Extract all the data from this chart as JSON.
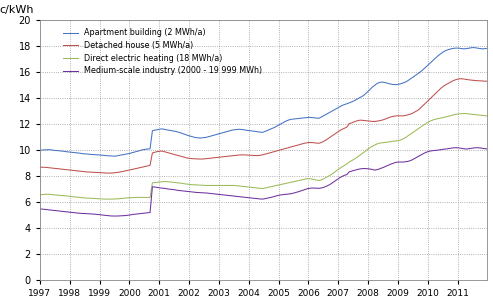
{
  "title": "c/kWh",
  "ylim": [
    0,
    20
  ],
  "yticks": [
    0,
    2,
    4,
    6,
    8,
    10,
    12,
    14,
    16,
    18,
    20
  ],
  "xlim": [
    1997,
    2012
  ],
  "xtick_labels": [
    "1997",
    "1998",
    "1999",
    "2000",
    "2001",
    "2002",
    "2003",
    "2004",
    "2005",
    "2006",
    "2007",
    "2008",
    "2009",
    "2010",
    "2011"
  ],
  "series": [
    {
      "label": "Apartment building (2 MWh/a)",
      "color": "#4472C4",
      "data": [
        10.02,
        10.02,
        10.04,
        10.04,
        10.05,
        10.03,
        10.0,
        9.98,
        9.97,
        9.95,
        9.93,
        9.9,
        9.88,
        9.86,
        9.84,
        9.82,
        9.8,
        9.78,
        9.75,
        9.73,
        9.72,
        9.7,
        9.68,
        9.67,
        9.66,
        9.65,
        9.63,
        9.62,
        9.6,
        9.58,
        9.57,
        9.56,
        9.55,
        9.58,
        9.62,
        9.65,
        9.68,
        9.72,
        9.75,
        9.8,
        9.85,
        9.9,
        9.95,
        10.0,
        10.05,
        10.08,
        10.1,
        10.12,
        11.5,
        11.55,
        11.58,
        11.62,
        11.65,
        11.62,
        11.58,
        11.55,
        11.52,
        11.48,
        11.45,
        11.4,
        11.35,
        11.28,
        11.22,
        11.15,
        11.1,
        11.05,
        11.0,
        10.97,
        10.95,
        10.95,
        10.98,
        11.0,
        11.05,
        11.1,
        11.15,
        11.2,
        11.25,
        11.3,
        11.35,
        11.4,
        11.45,
        11.5,
        11.55,
        11.58,
        11.6,
        11.62,
        11.6,
        11.58,
        11.55,
        11.52,
        11.5,
        11.48,
        11.45,
        11.42,
        11.4,
        11.38,
        11.45,
        11.52,
        11.6,
        11.68,
        11.75,
        11.85,
        11.95,
        12.05,
        12.15,
        12.25,
        12.32,
        12.38,
        12.4,
        12.42,
        12.44,
        12.46,
        12.48,
        12.5,
        12.52,
        12.54,
        12.52,
        12.5,
        12.48,
        12.46,
        12.55,
        12.65,
        12.75,
        12.85,
        12.95,
        13.05,
        13.15,
        13.25,
        13.35,
        13.45,
        13.52,
        13.58,
        13.65,
        13.72,
        13.8,
        13.9,
        14.0,
        14.1,
        14.2,
        14.35,
        14.52,
        14.7,
        14.88,
        15.02,
        15.15,
        15.22,
        15.25,
        15.22,
        15.18,
        15.12,
        15.08,
        15.05,
        15.05,
        15.08,
        15.12,
        15.18,
        15.25,
        15.35,
        15.48,
        15.6,
        15.72,
        15.85,
        15.98,
        16.12,
        16.28,
        16.45,
        16.62,
        16.78,
        16.95,
        17.12,
        17.28,
        17.42,
        17.55,
        17.65,
        17.72,
        17.78,
        17.82,
        17.85,
        17.86,
        17.85,
        17.82,
        17.8,
        17.82,
        17.85,
        17.88,
        17.9,
        17.88,
        17.85,
        17.82,
        17.8,
        17.82,
        17.85
      ]
    },
    {
      "label": "Detached house (5 MWh/a)",
      "color": "#C0504D",
      "data": [
        8.7,
        8.7,
        8.7,
        8.68,
        8.66,
        8.64,
        8.62,
        8.6,
        8.58,
        8.56,
        8.54,
        8.52,
        8.5,
        8.48,
        8.46,
        8.44,
        8.42,
        8.4,
        8.38,
        8.36,
        8.34,
        8.33,
        8.32,
        8.31,
        8.3,
        8.29,
        8.28,
        8.27,
        8.26,
        8.25,
        8.25,
        8.26,
        8.28,
        8.3,
        8.33,
        8.36,
        8.4,
        8.44,
        8.48,
        8.52,
        8.56,
        8.6,
        8.64,
        8.68,
        8.72,
        8.76,
        8.8,
        8.85,
        9.8,
        9.85,
        9.9,
        9.92,
        9.95,
        9.9,
        9.85,
        9.8,
        9.75,
        9.7,
        9.65,
        9.6,
        9.55,
        9.5,
        9.45,
        9.4,
        9.38,
        9.36,
        9.35,
        9.34,
        9.33,
        9.33,
        9.34,
        9.36,
        9.38,
        9.4,
        9.42,
        9.44,
        9.46,
        9.48,
        9.5,
        9.52,
        9.54,
        9.56,
        9.58,
        9.6,
        9.62,
        9.64,
        9.65,
        9.65,
        9.64,
        9.63,
        9.62,
        9.61,
        9.6,
        9.6,
        9.62,
        9.65,
        9.7,
        9.75,
        9.8,
        9.85,
        9.9,
        9.95,
        10.0,
        10.05,
        10.1,
        10.15,
        10.2,
        10.25,
        10.3,
        10.35,
        10.4,
        10.45,
        10.5,
        10.55,
        10.58,
        10.6,
        10.6,
        10.58,
        10.56,
        10.54,
        10.6,
        10.68,
        10.78,
        10.9,
        11.02,
        11.15,
        11.28,
        11.4,
        11.52,
        11.62,
        11.7,
        11.78,
        12.05,
        12.1,
        12.18,
        12.25,
        12.3,
        12.32,
        12.3,
        12.28,
        12.26,
        12.24,
        12.22,
        12.22,
        12.25,
        12.28,
        12.32,
        12.38,
        12.45,
        12.52,
        12.58,
        12.62,
        12.65,
        12.65,
        12.65,
        12.65,
        12.68,
        12.72,
        12.78,
        12.85,
        12.95,
        13.05,
        13.18,
        13.35,
        13.52,
        13.7,
        13.88,
        14.05,
        14.22,
        14.4,
        14.58,
        14.75,
        14.9,
        15.02,
        15.12,
        15.22,
        15.32,
        15.4,
        15.46,
        15.5,
        15.5,
        15.48,
        15.45,
        15.42,
        15.4,
        15.38,
        15.36,
        15.35,
        15.34,
        15.33,
        15.32,
        15.3
      ]
    },
    {
      "label": "Direct electric heating (18 MWh/a)",
      "color": "#9BBB59",
      "data": [
        6.6,
        6.6,
        6.62,
        6.62,
        6.62,
        6.6,
        6.58,
        6.56,
        6.55,
        6.53,
        6.52,
        6.5,
        6.48,
        6.46,
        6.44,
        6.42,
        6.4,
        6.38,
        6.36,
        6.34,
        6.33,
        6.32,
        6.31,
        6.3,
        6.29,
        6.28,
        6.27,
        6.26,
        6.25,
        6.25,
        6.25,
        6.25,
        6.26,
        6.27,
        6.28,
        6.3,
        6.32,
        6.34,
        6.35,
        6.36,
        6.37,
        6.38,
        6.38,
        6.38,
        6.38,
        6.38,
        6.38,
        6.38,
        7.5,
        7.52,
        7.54,
        7.56,
        7.58,
        7.6,
        7.6,
        7.58,
        7.56,
        7.54,
        7.52,
        7.5,
        7.48,
        7.45,
        7.42,
        7.4,
        7.38,
        7.36,
        7.35,
        7.34,
        7.33,
        7.32,
        7.31,
        7.3,
        7.3,
        7.3,
        7.3,
        7.3,
        7.3,
        7.3,
        7.3,
        7.3,
        7.3,
        7.3,
        7.3,
        7.3,
        7.28,
        7.26,
        7.24,
        7.22,
        7.2,
        7.18,
        7.16,
        7.14,
        7.12,
        7.1,
        7.08,
        7.06,
        7.1,
        7.14,
        7.18,
        7.22,
        7.26,
        7.3,
        7.34,
        7.38,
        7.42,
        7.46,
        7.5,
        7.54,
        7.58,
        7.62,
        7.66,
        7.7,
        7.74,
        7.78,
        7.82,
        7.82,
        7.8,
        7.76,
        7.72,
        7.68,
        7.72,
        7.8,
        7.9,
        8.0,
        8.1,
        8.22,
        8.35,
        8.5,
        8.62,
        8.75,
        8.85,
        8.95,
        9.1,
        9.2,
        9.3,
        9.42,
        9.55,
        9.68,
        9.8,
        9.95,
        10.1,
        10.22,
        10.32,
        10.42,
        10.5,
        10.55,
        10.58,
        10.6,
        10.62,
        10.65,
        10.68,
        10.7,
        10.72,
        10.75,
        10.8,
        10.88,
        10.98,
        11.1,
        11.22,
        11.35,
        11.48,
        11.6,
        11.72,
        11.85,
        11.98,
        12.1,
        12.2,
        12.28,
        12.35,
        12.4,
        12.44,
        12.48,
        12.52,
        12.56,
        12.6,
        12.65,
        12.7,
        12.75,
        12.78,
        12.8,
        12.82,
        12.83,
        12.82,
        12.8,
        12.78,
        12.76,
        12.74,
        12.72,
        12.7,
        12.68,
        12.66,
        12.65
      ]
    },
    {
      "label": "Medium-scale industry (2000 - 19 999 MWh)",
      "color": "#7030A0",
      "data": [
        5.5,
        5.48,
        5.46,
        5.44,
        5.42,
        5.4,
        5.38,
        5.36,
        5.34,
        5.32,
        5.3,
        5.28,
        5.26,
        5.24,
        5.22,
        5.2,
        5.18,
        5.16,
        5.15,
        5.14,
        5.13,
        5.12,
        5.11,
        5.1,
        5.08,
        5.06,
        5.04,
        5.02,
        5.0,
        4.98,
        4.96,
        4.95,
        4.95,
        4.95,
        4.96,
        4.97,
        4.98,
        5.0,
        5.02,
        5.05,
        5.08,
        5.1,
        5.12,
        5.14,
        5.16,
        5.18,
        5.2,
        5.22,
        7.2,
        7.18,
        7.15,
        7.12,
        7.1,
        7.08,
        7.05,
        7.02,
        7.0,
        6.98,
        6.95,
        6.92,
        6.9,
        6.88,
        6.86,
        6.84,
        6.82,
        6.8,
        6.78,
        6.76,
        6.75,
        6.74,
        6.73,
        6.72,
        6.7,
        6.68,
        6.66,
        6.64,
        6.62,
        6.6,
        6.58,
        6.56,
        6.54,
        6.52,
        6.5,
        6.48,
        6.46,
        6.44,
        6.42,
        6.4,
        6.38,
        6.36,
        6.34,
        6.32,
        6.3,
        6.28,
        6.26,
        6.25,
        6.28,
        6.32,
        6.36,
        6.4,
        6.45,
        6.5,
        6.55,
        6.58,
        6.6,
        6.62,
        6.64,
        6.66,
        6.7,
        6.75,
        6.8,
        6.86,
        6.92,
        6.98,
        7.04,
        7.08,
        7.1,
        7.1,
        7.09,
        7.08,
        7.1,
        7.15,
        7.22,
        7.3,
        7.4,
        7.52,
        7.65,
        7.78,
        7.9,
        8.0,
        8.08,
        8.14,
        8.35,
        8.4,
        8.45,
        8.5,
        8.55,
        8.58,
        8.6,
        8.6,
        8.58,
        8.56,
        8.52,
        8.48,
        8.52,
        8.58,
        8.65,
        8.72,
        8.8,
        8.88,
        8.96,
        9.02,
        9.08,
        9.1,
        9.1,
        9.1,
        9.12,
        9.15,
        9.2,
        9.28,
        9.38,
        9.48,
        9.58,
        9.68,
        9.78,
        9.86,
        9.92,
        9.96,
        9.98,
        10.0,
        10.02,
        10.05,
        10.08,
        10.1,
        10.12,
        10.15,
        10.18,
        10.2,
        10.2,
        10.18,
        10.15,
        10.12,
        10.1,
        10.12,
        10.15,
        10.18,
        10.2,
        10.2,
        10.18,
        10.15,
        10.12,
        10.1
      ]
    }
  ],
  "background_color": "#FFFFFF",
  "grid_color": "#999999",
  "fig_width": 4.93,
  "fig_height": 3.04,
  "dpi": 100
}
